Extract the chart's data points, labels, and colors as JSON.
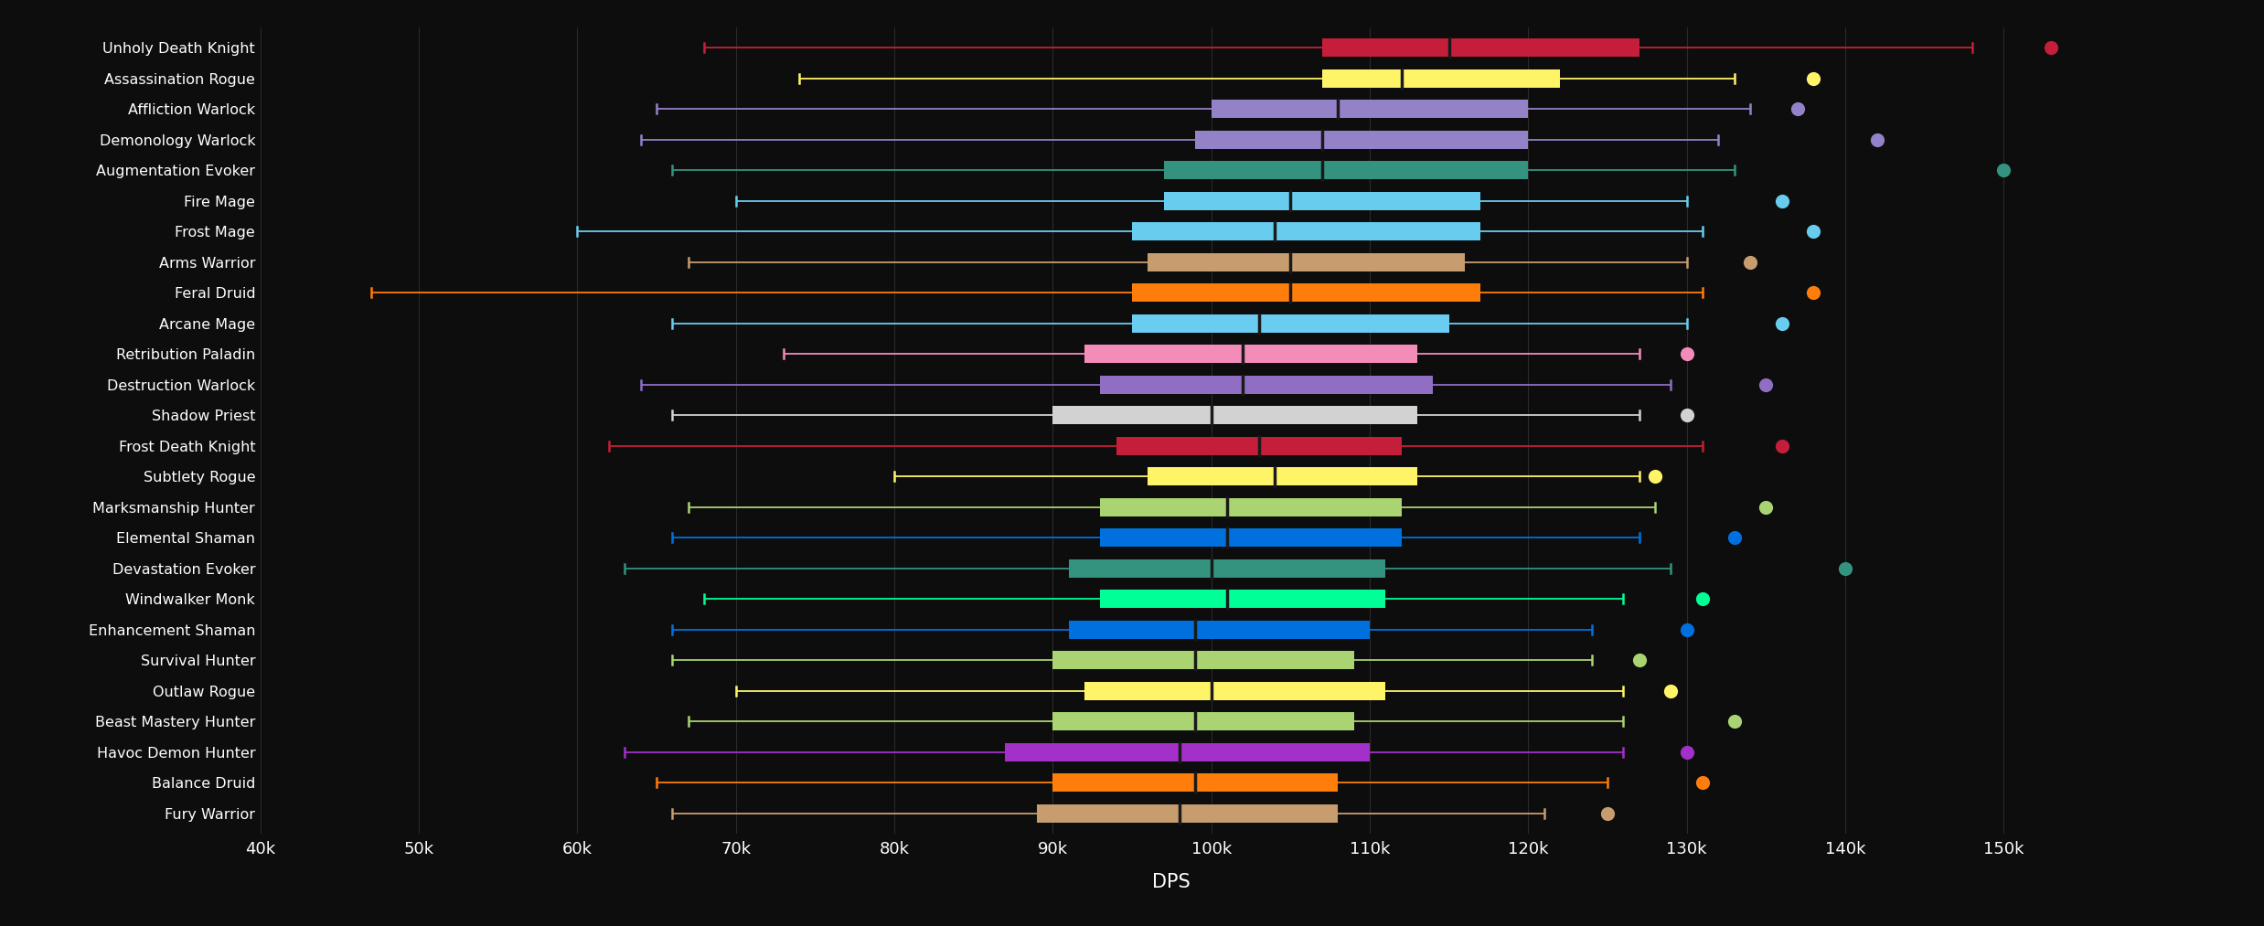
{
  "background_color": "#0d0d0d",
  "text_color": "#ffffff",
  "grid_color": "#2a2a2a",
  "xlabel": "DPS",
  "xlim": [
    40000,
    155000
  ],
  "xticks": [
    40000,
    50000,
    60000,
    70000,
    80000,
    90000,
    100000,
    110000,
    120000,
    130000,
    140000,
    150000
  ],
  "xtick_labels": [
    "40k",
    "50k",
    "60k",
    "70k",
    "80k",
    "90k",
    "100k",
    "110k",
    "120k",
    "130k",
    "140k",
    "150k"
  ],
  "specs": [
    {
      "label": "Unholy Death Knight",
      "color": "#c41e3a",
      "whisker_low": 68000,
      "q1": 107000,
      "median": 115000,
      "q3": 127000,
      "whisker_high": 148000,
      "dot": 153000
    },
    {
      "label": "Assassination Rogue",
      "color": "#fff468",
      "whisker_low": 74000,
      "q1": 107000,
      "median": 112000,
      "q3": 122000,
      "whisker_high": 133000,
      "dot": 138000
    },
    {
      "label": "Affliction Warlock",
      "color": "#9482c9",
      "whisker_low": 65000,
      "q1": 100000,
      "median": 108000,
      "q3": 120000,
      "whisker_high": 134000,
      "dot": 137000
    },
    {
      "label": "Demonology Warlock",
      "color": "#9482c9",
      "whisker_low": 64000,
      "q1": 99000,
      "median": 107000,
      "q3": 120000,
      "whisker_high": 132000,
      "dot": 142000
    },
    {
      "label": "Augmentation Evoker",
      "color": "#33937f",
      "whisker_low": 66000,
      "q1": 97000,
      "median": 107000,
      "q3": 120000,
      "whisker_high": 133000,
      "dot": 150000
    },
    {
      "label": "Fire Mage",
      "color": "#68ccef",
      "whisker_low": 70000,
      "q1": 97000,
      "median": 105000,
      "q3": 117000,
      "whisker_high": 130000,
      "dot": 136000
    },
    {
      "label": "Frost Mage",
      "color": "#68ccef",
      "whisker_low": 60000,
      "q1": 95000,
      "median": 104000,
      "q3": 117000,
      "whisker_high": 131000,
      "dot": 138000
    },
    {
      "label": "Arms Warrior",
      "color": "#c79c6e",
      "whisker_low": 67000,
      "q1": 96000,
      "median": 105000,
      "q3": 116000,
      "whisker_high": 130000,
      "dot": 134000
    },
    {
      "label": "Feral Druid",
      "color": "#ff7d0a",
      "whisker_low": 47000,
      "q1": 95000,
      "median": 105000,
      "q3": 117000,
      "whisker_high": 131000,
      "dot": 138000
    },
    {
      "label": "Arcane Mage",
      "color": "#69ccf0",
      "whisker_low": 66000,
      "q1": 95000,
      "median": 103000,
      "q3": 115000,
      "whisker_high": 130000,
      "dot": 136000
    },
    {
      "label": "Retribution Paladin",
      "color": "#f48cba",
      "whisker_low": 73000,
      "q1": 92000,
      "median": 102000,
      "q3": 113000,
      "whisker_high": 127000,
      "dot": 130000
    },
    {
      "label": "Destruction Warlock",
      "color": "#8f6ec4",
      "whisker_low": 64000,
      "q1": 93000,
      "median": 102000,
      "q3": 114000,
      "whisker_high": 129000,
      "dot": 135000
    },
    {
      "label": "Shadow Priest",
      "color": "#d2d2d2",
      "whisker_low": 66000,
      "q1": 90000,
      "median": 100000,
      "q3": 113000,
      "whisker_high": 127000,
      "dot": 130000
    },
    {
      "label": "Frost Death Knight",
      "color": "#c41e3a",
      "whisker_low": 62000,
      "q1": 94000,
      "median": 103000,
      "q3": 112000,
      "whisker_high": 131000,
      "dot": 136000
    },
    {
      "label": "Subtlety Rogue",
      "color": "#fff468",
      "whisker_low": 80000,
      "q1": 96000,
      "median": 104000,
      "q3": 113000,
      "whisker_high": 127000,
      "dot": 128000
    },
    {
      "label": "Marksmanship Hunter",
      "color": "#aad372",
      "whisker_low": 67000,
      "q1": 93000,
      "median": 101000,
      "q3": 112000,
      "whisker_high": 128000,
      "dot": 135000
    },
    {
      "label": "Elemental Shaman",
      "color": "#0070de",
      "whisker_low": 66000,
      "q1": 93000,
      "median": 101000,
      "q3": 112000,
      "whisker_high": 127000,
      "dot": 133000
    },
    {
      "label": "Devastation Evoker",
      "color": "#33937f",
      "whisker_low": 63000,
      "q1": 91000,
      "median": 100000,
      "q3": 111000,
      "whisker_high": 129000,
      "dot": 140000
    },
    {
      "label": "Windwalker Monk",
      "color": "#00ff96",
      "whisker_low": 68000,
      "q1": 93000,
      "median": 101000,
      "q3": 111000,
      "whisker_high": 126000,
      "dot": 131000
    },
    {
      "label": "Enhancement Shaman",
      "color": "#0070de",
      "whisker_low": 66000,
      "q1": 91000,
      "median": 99000,
      "q3": 110000,
      "whisker_high": 124000,
      "dot": 130000
    },
    {
      "label": "Survival Hunter",
      "color": "#aad372",
      "whisker_low": 66000,
      "q1": 90000,
      "median": 99000,
      "q3": 109000,
      "whisker_high": 124000,
      "dot": 127000
    },
    {
      "label": "Outlaw Rogue",
      "color": "#fff468",
      "whisker_low": 70000,
      "q1": 92000,
      "median": 100000,
      "q3": 111000,
      "whisker_high": 126000,
      "dot": 129000
    },
    {
      "label": "Beast Mastery Hunter",
      "color": "#aad372",
      "whisker_low": 67000,
      "q1": 90000,
      "median": 99000,
      "q3": 109000,
      "whisker_high": 126000,
      "dot": 133000
    },
    {
      "label": "Havoc Demon Hunter",
      "color": "#a330c9",
      "whisker_low": 63000,
      "q1": 87000,
      "median": 98000,
      "q3": 110000,
      "whisker_high": 126000,
      "dot": 130000
    },
    {
      "label": "Balance Druid",
      "color": "#ff7d0a",
      "whisker_low": 65000,
      "q1": 90000,
      "median": 99000,
      "q3": 108000,
      "whisker_high": 125000,
      "dot": 131000
    },
    {
      "label": "Fury Warrior",
      "color": "#c79c6e",
      "whisker_low": 66000,
      "q1": 89000,
      "median": 98000,
      "q3": 108000,
      "whisker_high": 121000,
      "dot": 125000
    }
  ]
}
